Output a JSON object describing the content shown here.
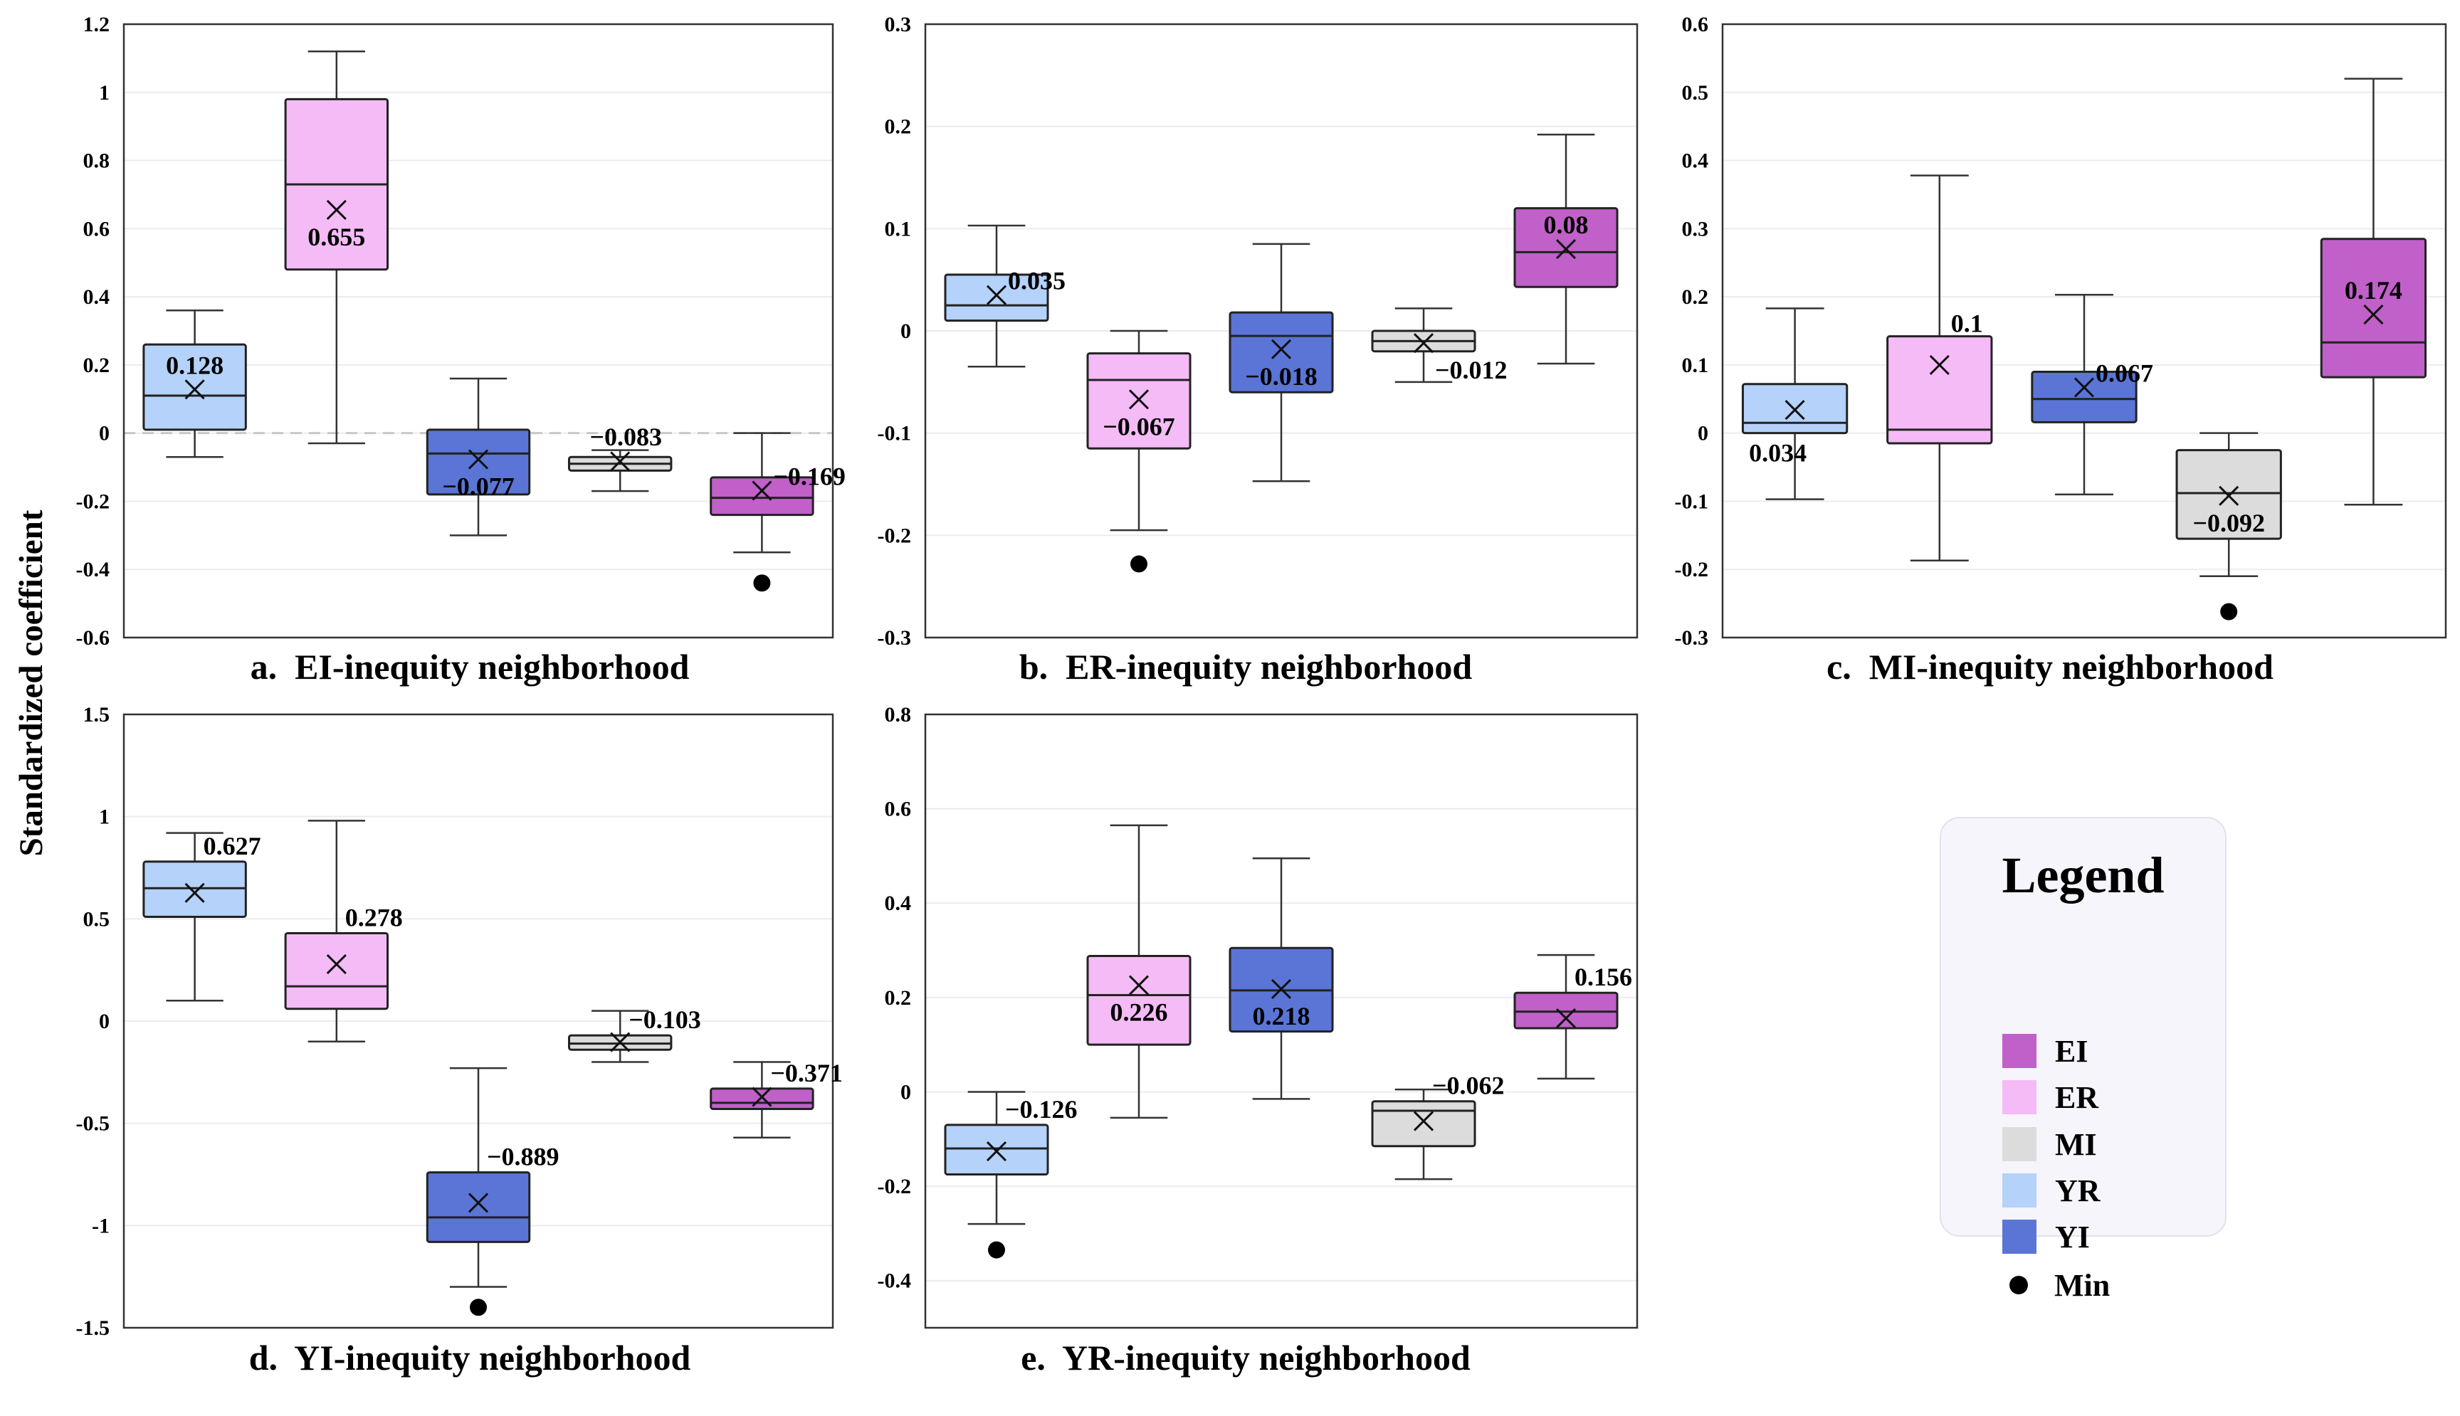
{
  "y_axis_label": "Standardized coefficient",
  "legend": {
    "title": "Legend",
    "items": [
      {
        "label": "EI",
        "color": "#c060c8",
        "type": "swatch"
      },
      {
        "label": "ER",
        "color": "#f5bbf6",
        "type": "swatch"
      },
      {
        "label": "MI",
        "color": "#dcdcdc",
        "type": "swatch"
      },
      {
        "label": "YR",
        "color": "#b4d2fa",
        "type": "swatch"
      },
      {
        "label": "YI",
        "color": "#5a75d6",
        "type": "swatch"
      },
      {
        "label": "Min",
        "color": "#000000",
        "type": "dot"
      }
    ]
  },
  "colors": {
    "YR": "#b4d2fa",
    "ER": "#f5bbf6",
    "YI": "#5a75d6",
    "MI": "#dcdcdc",
    "EI": "#c060c8"
  },
  "chart_data": [
    {
      "type": "box",
      "title": "a.  EI-inequity neighborhood",
      "ylim": [
        -0.6,
        1.2
      ],
      "yticks": [
        -0.6,
        -0.4,
        -0.2,
        0,
        0.2,
        0.4,
        0.6,
        0.8,
        1,
        1.2
      ],
      "ytick_labels": [
        "-0.6",
        "-0.4",
        "-0.2",
        "0",
        "0.2",
        "0.4",
        "0.6",
        "0.8",
        "1",
        "1.2"
      ],
      "zero_line": true,
      "series": [
        {
          "group": "YR",
          "whisker_low": -0.07,
          "q1": 0.01,
          "median": 0.11,
          "q3": 0.26,
          "whisker_high": 0.36,
          "mean": 0.128,
          "mean_label": "0.128",
          "label_pos": "inside-top",
          "min_outlier": null
        },
        {
          "group": "ER",
          "whisker_low": -0.03,
          "q1": 0.48,
          "median": 0.73,
          "q3": 0.98,
          "whisker_high": 1.12,
          "mean": 0.655,
          "mean_label": "0.655",
          "label_pos": "inside-below",
          "min_outlier": null
        },
        {
          "group": "YI",
          "whisker_low": -0.3,
          "q1": -0.18,
          "median": -0.06,
          "q3": 0.01,
          "whisker_high": 0.16,
          "mean": -0.077,
          "mean_label": "−0.077",
          "label_pos": "inside-below",
          "min_outlier": null
        },
        {
          "group": "MI",
          "whisker_low": -0.17,
          "q1": -0.11,
          "median": -0.09,
          "q3": -0.07,
          "whisker_high": -0.05,
          "mean": -0.083,
          "mean_label": "−0.083",
          "label_pos": "above",
          "min_outlier": null
        },
        {
          "group": "EI",
          "whisker_low": -0.35,
          "q1": -0.24,
          "median": -0.19,
          "q3": -0.13,
          "whisker_high": 0.0,
          "mean": -0.169,
          "mean_label": "−0.169",
          "label_pos": "right",
          "min_outlier": -0.44
        }
      ]
    },
    {
      "type": "box",
      "title": "b.  ER-inequity neighborhood",
      "ylim": [
        -0.3,
        0.3
      ],
      "yticks": [
        -0.3,
        -0.2,
        -0.1,
        0,
        0.1,
        0.2,
        0.3
      ],
      "ytick_labels": [
        "-0.3",
        "-0.2",
        "-0.1",
        "0",
        "0.1",
        "0.2",
        "0.3"
      ],
      "zero_line": false,
      "series": [
        {
          "group": "YR",
          "whisker_low": -0.035,
          "q1": 0.01,
          "median": 0.025,
          "q3": 0.055,
          "whisker_high": 0.103,
          "mean": 0.035,
          "mean_label": "0.035",
          "label_pos": "right",
          "min_outlier": null
        },
        {
          "group": "ER",
          "whisker_low": -0.195,
          "q1": -0.115,
          "median": -0.048,
          "q3": -0.022,
          "whisker_high": 0.0,
          "mean": -0.067,
          "mean_label": "−0.067",
          "label_pos": "inside-below",
          "min_outlier": -0.228
        },
        {
          "group": "YI",
          "whisker_low": -0.147,
          "q1": -0.06,
          "median": -0.005,
          "q3": 0.018,
          "whisker_high": 0.085,
          "mean": -0.018,
          "mean_label": "−0.018",
          "label_pos": "inside-below",
          "min_outlier": null
        },
        {
          "group": "MI",
          "whisker_low": -0.05,
          "q1": -0.02,
          "median": -0.01,
          "q3": 0.0,
          "whisker_high": 0.022,
          "mean": -0.012,
          "mean_label": "−0.012",
          "label_pos": "right-below",
          "min_outlier": null
        },
        {
          "group": "EI",
          "whisker_low": -0.032,
          "q1": 0.043,
          "median": 0.077,
          "q3": 0.12,
          "whisker_high": 0.192,
          "mean": 0.08,
          "mean_label": "0.08",
          "label_pos": "inside-top",
          "min_outlier": null
        }
      ]
    },
    {
      "type": "box",
      "title": "c.  MI-inequity neighborhood",
      "ylim": [
        -0.3,
        0.6
      ],
      "yticks": [
        -0.3,
        -0.2,
        -0.1,
        0,
        0.1,
        0.2,
        0.3,
        0.4,
        0.5,
        0.6
      ],
      "ytick_labels": [
        "-0.3",
        "-0.2",
        "-0.1",
        "0",
        "0.1",
        "0.2",
        "0.3",
        "0.4",
        "0.5",
        "0.6"
      ],
      "zero_line": false,
      "series": [
        {
          "group": "YR",
          "whisker_low": -0.097,
          "q1": 0.0,
          "median": 0.015,
          "q3": 0.072,
          "whisker_high": 0.183,
          "mean": 0.034,
          "mean_label": "0.034",
          "label_pos": "below-left",
          "min_outlier": null
        },
        {
          "group": "ER",
          "whisker_low": -0.187,
          "q1": -0.015,
          "median": 0.005,
          "q3": 0.142,
          "whisker_high": 0.378,
          "mean": 0.1,
          "mean_label": "0.1",
          "label_pos": "right-high",
          "min_outlier": null
        },
        {
          "group": "YI",
          "whisker_low": -0.09,
          "q1": 0.016,
          "median": 0.05,
          "q3": 0.09,
          "whisker_high": 0.203,
          "mean": 0.067,
          "mean_label": "0.067",
          "label_pos": "right",
          "min_outlier": null
        },
        {
          "group": "MI",
          "whisker_low": -0.21,
          "q1": -0.155,
          "median": -0.088,
          "q3": -0.025,
          "whisker_high": 0.0,
          "mean": -0.092,
          "mean_label": "−0.092",
          "label_pos": "inside-below",
          "min_outlier": -0.262
        },
        {
          "group": "EI",
          "whisker_low": -0.105,
          "q1": 0.082,
          "median": 0.133,
          "q3": 0.285,
          "whisker_high": 0.52,
          "mean": 0.174,
          "mean_label": "0.174",
          "label_pos": "inside-top",
          "min_outlier": null
        }
      ]
    },
    {
      "type": "box",
      "title": "d.  YI-inequity neighborhood",
      "ylim": [
        -1.5,
        1.5
      ],
      "yticks": [
        -1.5,
        -1,
        -0.5,
        0,
        0.5,
        1,
        1.5
      ],
      "ytick_labels": [
        "-1.5",
        "-1",
        "-0.5",
        "0",
        "0.5",
        "1",
        "1.5"
      ],
      "zero_line": false,
      "series": [
        {
          "group": "YR",
          "whisker_low": 0.1,
          "q1": 0.51,
          "median": 0.65,
          "q3": 0.78,
          "whisker_high": 0.92,
          "mean": 0.627,
          "mean_label": "0.627",
          "label_pos": "right-top",
          "min_outlier": null
        },
        {
          "group": "ER",
          "whisker_low": -0.1,
          "q1": 0.06,
          "median": 0.17,
          "q3": 0.43,
          "whisker_high": 0.98,
          "mean": 0.278,
          "mean_label": "0.278",
          "label_pos": "right-top",
          "min_outlier": null
        },
        {
          "group": "YI",
          "whisker_low": -1.3,
          "q1": -1.08,
          "median": -0.96,
          "q3": -0.74,
          "whisker_high": -0.23,
          "mean": -0.889,
          "mean_label": "−0.889",
          "label_pos": "right-top",
          "min_outlier": -1.4
        },
        {
          "group": "MI",
          "whisker_low": -0.2,
          "q1": -0.14,
          "median": -0.11,
          "q3": -0.07,
          "whisker_high": 0.05,
          "mean": -0.103,
          "mean_label": "−0.103",
          "label_pos": "right-top",
          "min_outlier": null
        },
        {
          "group": "EI",
          "whisker_low": -0.57,
          "q1": -0.43,
          "median": -0.4,
          "q3": -0.33,
          "whisker_high": -0.2,
          "mean": -0.371,
          "mean_label": "−0.371",
          "label_pos": "right-top",
          "min_outlier": null
        }
      ]
    },
    {
      "type": "box",
      "title": "e.  YR-inequity neighborhood",
      "ylim": [
        -0.5,
        0.8
      ],
      "yticks": [
        -0.4,
        -0.2,
        0,
        0.2,
        0.4,
        0.6,
        0.8
      ],
      "ytick_labels": [
        "-0.4",
        "-0.2",
        "0",
        "0.2",
        "0.4",
        "0.6",
        "0.8"
      ],
      "zero_line": false,
      "series": [
        {
          "group": "YR",
          "whisker_low": -0.28,
          "q1": -0.175,
          "median": -0.12,
          "q3": -0.07,
          "whisker_high": 0.0,
          "mean": -0.126,
          "mean_label": "−0.126",
          "label_pos": "right-top",
          "min_outlier": -0.335
        },
        {
          "group": "ER",
          "whisker_low": -0.055,
          "q1": 0.1,
          "median": 0.205,
          "q3": 0.288,
          "whisker_high": 0.565,
          "mean": 0.226,
          "mean_label": "0.226",
          "label_pos": "inside-below",
          "min_outlier": null
        },
        {
          "group": "YI",
          "whisker_low": -0.015,
          "q1": 0.128,
          "median": 0.215,
          "q3": 0.305,
          "whisker_high": 0.495,
          "mean": 0.218,
          "mean_label": "0.218",
          "label_pos": "inside-below",
          "min_outlier": null
        },
        {
          "group": "MI",
          "whisker_low": -0.185,
          "q1": -0.115,
          "median": -0.04,
          "q3": -0.02,
          "whisker_high": 0.005,
          "mean": -0.062,
          "mean_label": "−0.062",
          "label_pos": "right-top",
          "min_outlier": null
        },
        {
          "group": "EI",
          "whisker_low": 0.028,
          "q1": 0.135,
          "median": 0.17,
          "q3": 0.21,
          "whisker_high": 0.29,
          "mean": 0.156,
          "mean_label": "0.156",
          "label_pos": "right-top",
          "min_outlier": null
        }
      ]
    }
  ]
}
